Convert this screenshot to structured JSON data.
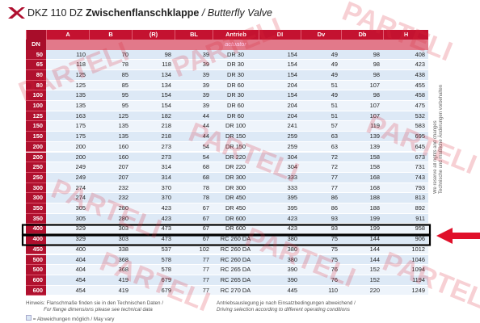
{
  "header": {
    "brand_title": "DKZ 110 DZ",
    "title": "Zwischenflanschklappe",
    "separator": "/",
    "subtitle": "Butterfly Valve"
  },
  "table": {
    "columns": [
      "DN",
      "A",
      "B",
      "(R)",
      "BL",
      "Antrieb",
      "DI",
      "Dv",
      "Db",
      "H"
    ],
    "subheader": "actuator",
    "rows": [
      [
        "50",
        "110",
        "70",
        "98",
        "39",
        "DR 30",
        "154",
        "49",
        "98",
        "408"
      ],
      [
        "65",
        "118",
        "78",
        "118",
        "39",
        "DR 30",
        "154",
        "49",
        "98",
        "423"
      ],
      [
        "80",
        "125",
        "85",
        "134",
        "39",
        "DR 30",
        "154",
        "49",
        "98",
        "438"
      ],
      [
        "80",
        "125",
        "85",
        "134",
        "39",
        "DR 60",
        "204",
        "51",
        "107",
        "455"
      ],
      [
        "100",
        "135",
        "95",
        "154",
        "39",
        "DR 30",
        "154",
        "49",
        "98",
        "458"
      ],
      [
        "100",
        "135",
        "95",
        "154",
        "39",
        "DR 60",
        "204",
        "51",
        "107",
        "475"
      ],
      [
        "125",
        "163",
        "125",
        "182",
        "44",
        "DR 60",
        "204",
        "51",
        "107",
        "532"
      ],
      [
        "150",
        "175",
        "135",
        "218",
        "44",
        "DR 100",
        "241",
        "57",
        "119",
        "583"
      ],
      [
        "150",
        "175",
        "135",
        "218",
        "44",
        "DR 150",
        "259",
        "63",
        "139",
        "695"
      ],
      [
        "200",
        "200",
        "160",
        "273",
        "54",
        "DR 150",
        "259",
        "63",
        "139",
        "645"
      ],
      [
        "200",
        "200",
        "160",
        "273",
        "54",
        "DR 220",
        "304",
        "72",
        "158",
        "673"
      ],
      [
        "250",
        "249",
        "207",
        "314",
        "68",
        "DR 220",
        "304",
        "72",
        "158",
        "731"
      ],
      [
        "250",
        "249",
        "207",
        "314",
        "68",
        "DR 300",
        "333",
        "77",
        "168",
        "743"
      ],
      [
        "300",
        "274",
        "232",
        "370",
        "78",
        "DR 300",
        "333",
        "77",
        "168",
        "793"
      ],
      [
        "300",
        "274",
        "232",
        "370",
        "78",
        "DR 450",
        "395",
        "86",
        "188",
        "813"
      ],
      [
        "350",
        "305",
        "280",
        "423",
        "67",
        "DR 450",
        "395",
        "86",
        "188",
        "892"
      ],
      [
        "350",
        "305",
        "280",
        "423",
        "67",
        "DR 600",
        "423",
        "93",
        "199",
        "911"
      ],
      [
        "400",
        "329",
        "303",
        "473",
        "67",
        "DR 600",
        "423",
        "93",
        "199",
        "958"
      ],
      [
        "400",
        "329",
        "303",
        "473",
        "67",
        "RC 260 DA",
        "380",
        "75",
        "144",
        "906"
      ],
      [
        "450",
        "400",
        "338",
        "537",
        "102",
        "RC 260 DA",
        "380",
        "75",
        "144",
        "1012"
      ],
      [
        "500",
        "404",
        "368",
        "578",
        "77",
        "RC 260 DA",
        "380",
        "75",
        "144",
        "1046"
      ],
      [
        "500",
        "404",
        "368",
        "578",
        "77",
        "RC 265 DA",
        "390",
        "76",
        "152",
        "1094"
      ],
      [
        "600",
        "454",
        "419",
        "679",
        "77",
        "RC 265 DA",
        "390",
        "76",
        "152",
        "1194"
      ],
      [
        "600",
        "454",
        "419",
        "679",
        "77",
        "RC 270 DA",
        "445",
        "110",
        "220",
        "1249"
      ]
    ]
  },
  "side_note": [
    "We reserve all rights and changes",
    "Technische und maßliche Änderungen vorbehalten"
  ],
  "footer": {
    "left": [
      "Hinweis: Flanschmaße finden sie in den Technischen Daten /",
      "For flange dimensions please see technical data"
    ],
    "right": [
      "Antriebsauslegung je nach Einsatzbedingungen abweichend /",
      "Driving selection according to different operating conditions"
    ],
    "note": "= Abweichungen möglich / May vary"
  },
  "watermark": "PARTELI"
}
